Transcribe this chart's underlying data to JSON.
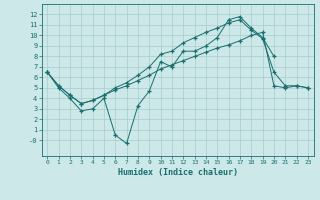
{
  "xlabel": "Humidex (Indice chaleur)",
  "background_color": "#cce8e8",
  "grid_color": "#aacccc",
  "line_color": "#1a6e6e",
  "xlim": [
    -0.5,
    23.5
  ],
  "ylim": [
    -1.5,
    13
  ],
  "xticks": [
    0,
    1,
    2,
    3,
    4,
    5,
    6,
    7,
    8,
    9,
    10,
    11,
    12,
    13,
    14,
    15,
    16,
    17,
    18,
    19,
    20,
    21,
    22,
    23
  ],
  "yticks": [
    0,
    1,
    2,
    3,
    4,
    5,
    6,
    7,
    8,
    9,
    10,
    11,
    12
  ],
  "ytick_labels": [
    "-0",
    "1",
    "2",
    "3",
    "4",
    "5",
    "6",
    "7",
    "8",
    "9",
    "10",
    "11",
    "12"
  ],
  "line1_x": [
    0,
    1,
    2,
    3,
    4,
    5,
    6,
    7,
    8,
    9,
    10,
    11,
    12,
    13,
    14,
    15,
    16,
    17,
    18,
    19,
    20
  ],
  "line1_y": [
    6.5,
    5.0,
    4.0,
    2.8,
    3.0,
    4.0,
    0.5,
    -0.3,
    3.3,
    4.7,
    7.5,
    7.0,
    8.5,
    8.5,
    9.0,
    9.8,
    11.5,
    11.8,
    10.7,
    9.8,
    8.0
  ],
  "line2_x": [
    0,
    1,
    2,
    3,
    4,
    5,
    6,
    7,
    8,
    9,
    10,
    11,
    12,
    13,
    14,
    15,
    16,
    17,
    18,
    19,
    20,
    21,
    22,
    23
  ],
  "line2_y": [
    6.5,
    5.2,
    4.3,
    3.5,
    3.8,
    4.3,
    4.8,
    5.2,
    5.7,
    6.2,
    6.8,
    7.2,
    7.6,
    8.0,
    8.4,
    8.8,
    9.1,
    9.5,
    10.0,
    10.3,
    5.2,
    5.0,
    5.2,
    5.0
  ],
  "line3_x": [
    0,
    1,
    2,
    3,
    4,
    5,
    6,
    7,
    8,
    9,
    10,
    11,
    12,
    13,
    14,
    15,
    16,
    17,
    18,
    19,
    20,
    21,
    22,
    23
  ],
  "line3_y": [
    6.5,
    5.2,
    4.3,
    3.5,
    3.8,
    4.3,
    5.0,
    5.5,
    6.2,
    7.0,
    8.2,
    8.5,
    9.3,
    9.8,
    10.3,
    10.7,
    11.2,
    11.5,
    10.5,
    9.7,
    6.5,
    5.2,
    5.2,
    5.0
  ]
}
